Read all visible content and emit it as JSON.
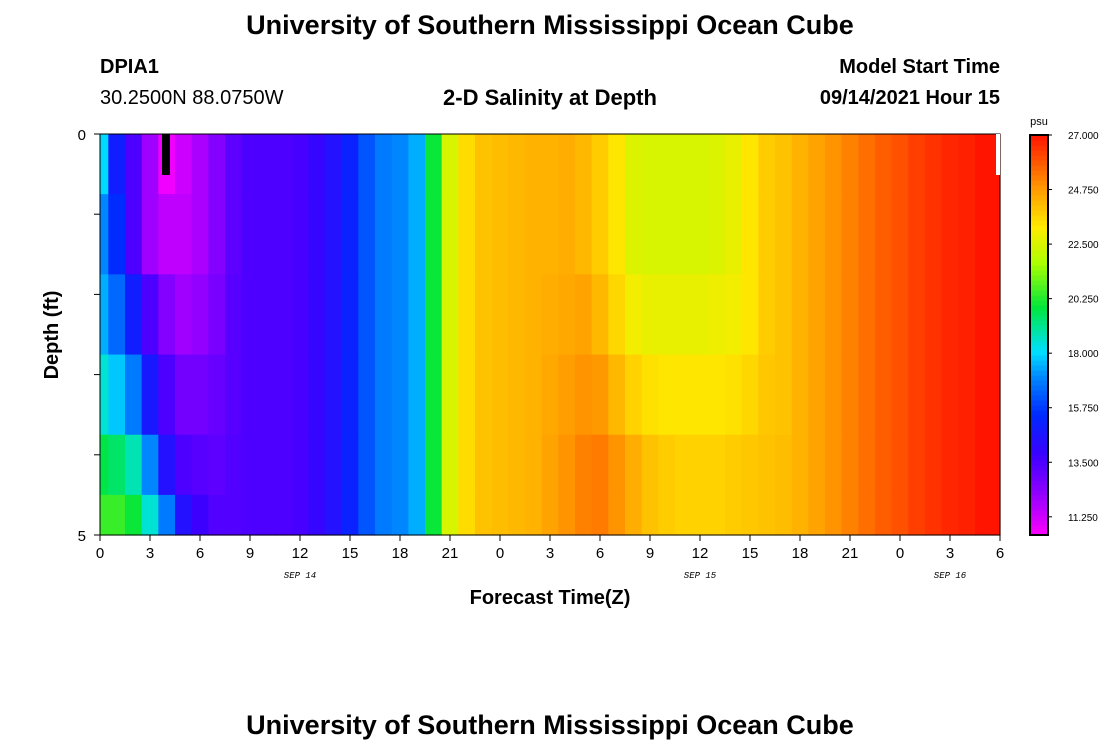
{
  "header": {
    "title": "University of Southern Mississippi Ocean Cube",
    "station_id": "DPIA1",
    "station_coords": "30.2500N  88.0750W",
    "subtitle": "2-D Salinity at Depth",
    "model_start_label": "Model Start Time",
    "model_start_value": "09/14/2021 Hour 15"
  },
  "footer": {
    "title": "University of Southern Mississippi Ocean Cube"
  },
  "chart_data": {
    "type": "heatmap",
    "title": "2-D Salinity at Depth",
    "xlabel": "Forecast Time(Z)",
    "ylabel": "Depth (ft)",
    "x_range_hours": [
      0,
      54
    ],
    "y_range_ft": [
      0,
      5
    ],
    "y_tick_labels": [
      "0",
      "5"
    ],
    "x_tick_labels": [
      "0",
      "3",
      "6",
      "9",
      "12",
      "15",
      "18",
      "21",
      "0",
      "3",
      "6",
      "9",
      "12",
      "15",
      "18",
      "21",
      "0",
      "3",
      "6"
    ],
    "date_labels": [
      {
        "text": "SEP 14",
        "hour": 12
      },
      {
        "text": "SEP 15",
        "hour": 36
      },
      {
        "text": "SEP 16",
        "hour": 51
      }
    ],
    "colorbar": {
      "unit": "psu",
      "min": 10.5,
      "max": 27.0,
      "tick_labels": [
        "27.000",
        "24.750",
        "22.500",
        "20.250",
        "18.000",
        "15.750",
        "13.500",
        "11.250"
      ],
      "tick_values": [
        27.0,
        24.75,
        22.5,
        20.25,
        18.0,
        15.75,
        13.5,
        11.25
      ]
    },
    "depth_layers_ft": [
      0.25,
      1.25,
      2.25,
      3.25,
      4.25,
      4.75
    ],
    "time_hours": [
      0,
      1,
      2,
      3,
      4,
      5,
      6,
      7,
      8,
      9,
      10,
      11,
      12,
      13,
      14,
      15,
      16,
      17,
      18,
      19,
      20,
      21,
      22,
      23,
      24,
      25,
      26,
      27,
      28,
      29,
      30,
      31,
      32,
      33,
      34,
      35,
      36,
      37,
      38,
      39,
      40,
      41,
      42,
      43,
      44,
      45,
      46,
      47,
      48,
      49,
      50,
      51,
      52,
      53,
      54
    ],
    "salinity_psu": [
      [
        18.0,
        15.0,
        13.5,
        12.0,
        10.7,
        11.3,
        11.8,
        12.5,
        13.2,
        13.5,
        13.5,
        13.5,
        13.6,
        14.0,
        14.5,
        15.2,
        16.2,
        16.8,
        17.0,
        17.5,
        20.0,
        22.5,
        23.5,
        24.0,
        24.1,
        24.2,
        24.3,
        24.3,
        24.4,
        24.2,
        23.8,
        23.3,
        22.6,
        22.5,
        22.5,
        22.5,
        22.5,
        22.6,
        22.8,
        23.3,
        23.8,
        24.0,
        24.3,
        24.6,
        24.9,
        25.2,
        25.5,
        25.8,
        26.0,
        26.3,
        26.5,
        26.7,
        26.8,
        27.0,
        27.0
      ],
      [
        17.0,
        15.5,
        13.5,
        12.0,
        11.5,
        11.5,
        11.8,
        12.5,
        13.2,
        13.5,
        13.5,
        13.5,
        13.6,
        14.0,
        14.5,
        15.2,
        16.2,
        16.8,
        17.0,
        17.5,
        20.0,
        22.5,
        23.5,
        24.0,
        24.1,
        24.2,
        24.3,
        24.3,
        24.4,
        24.2,
        23.8,
        23.3,
        22.6,
        22.5,
        22.5,
        22.5,
        22.5,
        22.6,
        22.8,
        23.3,
        23.8,
        24.0,
        24.3,
        24.6,
        24.9,
        25.2,
        25.5,
        25.8,
        26.0,
        26.3,
        26.5,
        26.7,
        26.8,
        27.0,
        27.0
      ],
      [
        17.5,
        16.5,
        15.0,
        13.5,
        12.5,
        12.0,
        12.2,
        12.7,
        13.3,
        13.5,
        13.5,
        13.5,
        13.6,
        14.0,
        14.5,
        15.2,
        16.2,
        16.8,
        17.0,
        17.5,
        20.0,
        22.5,
        23.5,
        24.0,
        24.1,
        24.2,
        24.3,
        24.4,
        24.5,
        24.6,
        24.2,
        23.6,
        23.0,
        22.8,
        22.8,
        22.8,
        22.8,
        22.9,
        23.0,
        23.3,
        23.8,
        24.0,
        24.3,
        24.6,
        24.9,
        25.2,
        25.5,
        25.8,
        26.0,
        26.3,
        26.5,
        26.7,
        26.8,
        27.0,
        27.0
      ],
      [
        18.5,
        17.8,
        16.8,
        14.8,
        13.5,
        12.8,
        12.8,
        13.0,
        13.3,
        13.5,
        13.5,
        13.5,
        13.6,
        14.0,
        14.5,
        15.2,
        16.2,
        16.8,
        17.0,
        17.5,
        20.0,
        22.5,
        23.5,
        24.0,
        24.1,
        24.2,
        24.3,
        24.5,
        24.7,
        24.9,
        24.8,
        24.2,
        23.7,
        23.4,
        23.3,
        23.3,
        23.3,
        23.3,
        23.4,
        23.6,
        23.9,
        24.0,
        24.3,
        24.6,
        24.9,
        25.2,
        25.5,
        25.8,
        26.0,
        26.3,
        26.5,
        26.7,
        26.8,
        27.0,
        27.0
      ],
      [
        19.8,
        19.5,
        18.8,
        17.0,
        14.5,
        13.5,
        13.3,
        13.2,
        13.4,
        13.5,
        13.5,
        13.5,
        13.6,
        14.0,
        14.5,
        15.2,
        16.2,
        16.8,
        17.0,
        17.5,
        20.0,
        22.5,
        23.5,
        24.0,
        24.1,
        24.2,
        24.3,
        24.6,
        24.9,
        25.2,
        25.3,
        24.9,
        24.4,
        24.0,
        23.8,
        23.7,
        23.7,
        23.7,
        23.8,
        23.9,
        24.0,
        24.1,
        24.3,
        24.6,
        24.9,
        25.2,
        25.5,
        25.8,
        26.0,
        26.3,
        26.5,
        26.7,
        26.8,
        27.0,
        27.0
      ],
      [
        20.5,
        20.5,
        20.0,
        18.5,
        16.8,
        14.5,
        13.8,
        13.4,
        13.4,
        13.5,
        13.5,
        13.5,
        13.6,
        14.0,
        14.5,
        15.2,
        16.2,
        16.8,
        17.0,
        17.5,
        20.0,
        22.5,
        23.5,
        24.0,
        24.1,
        24.2,
        24.3,
        24.6,
        24.9,
        25.2,
        25.3,
        24.9,
        24.4,
        24.0,
        23.8,
        23.7,
        23.7,
        23.7,
        23.8,
        23.9,
        24.0,
        24.1,
        24.3,
        24.6,
        24.9,
        25.2,
        25.5,
        25.8,
        26.0,
        26.3,
        26.5,
        26.7,
        26.8,
        27.0,
        27.0
      ]
    ]
  }
}
